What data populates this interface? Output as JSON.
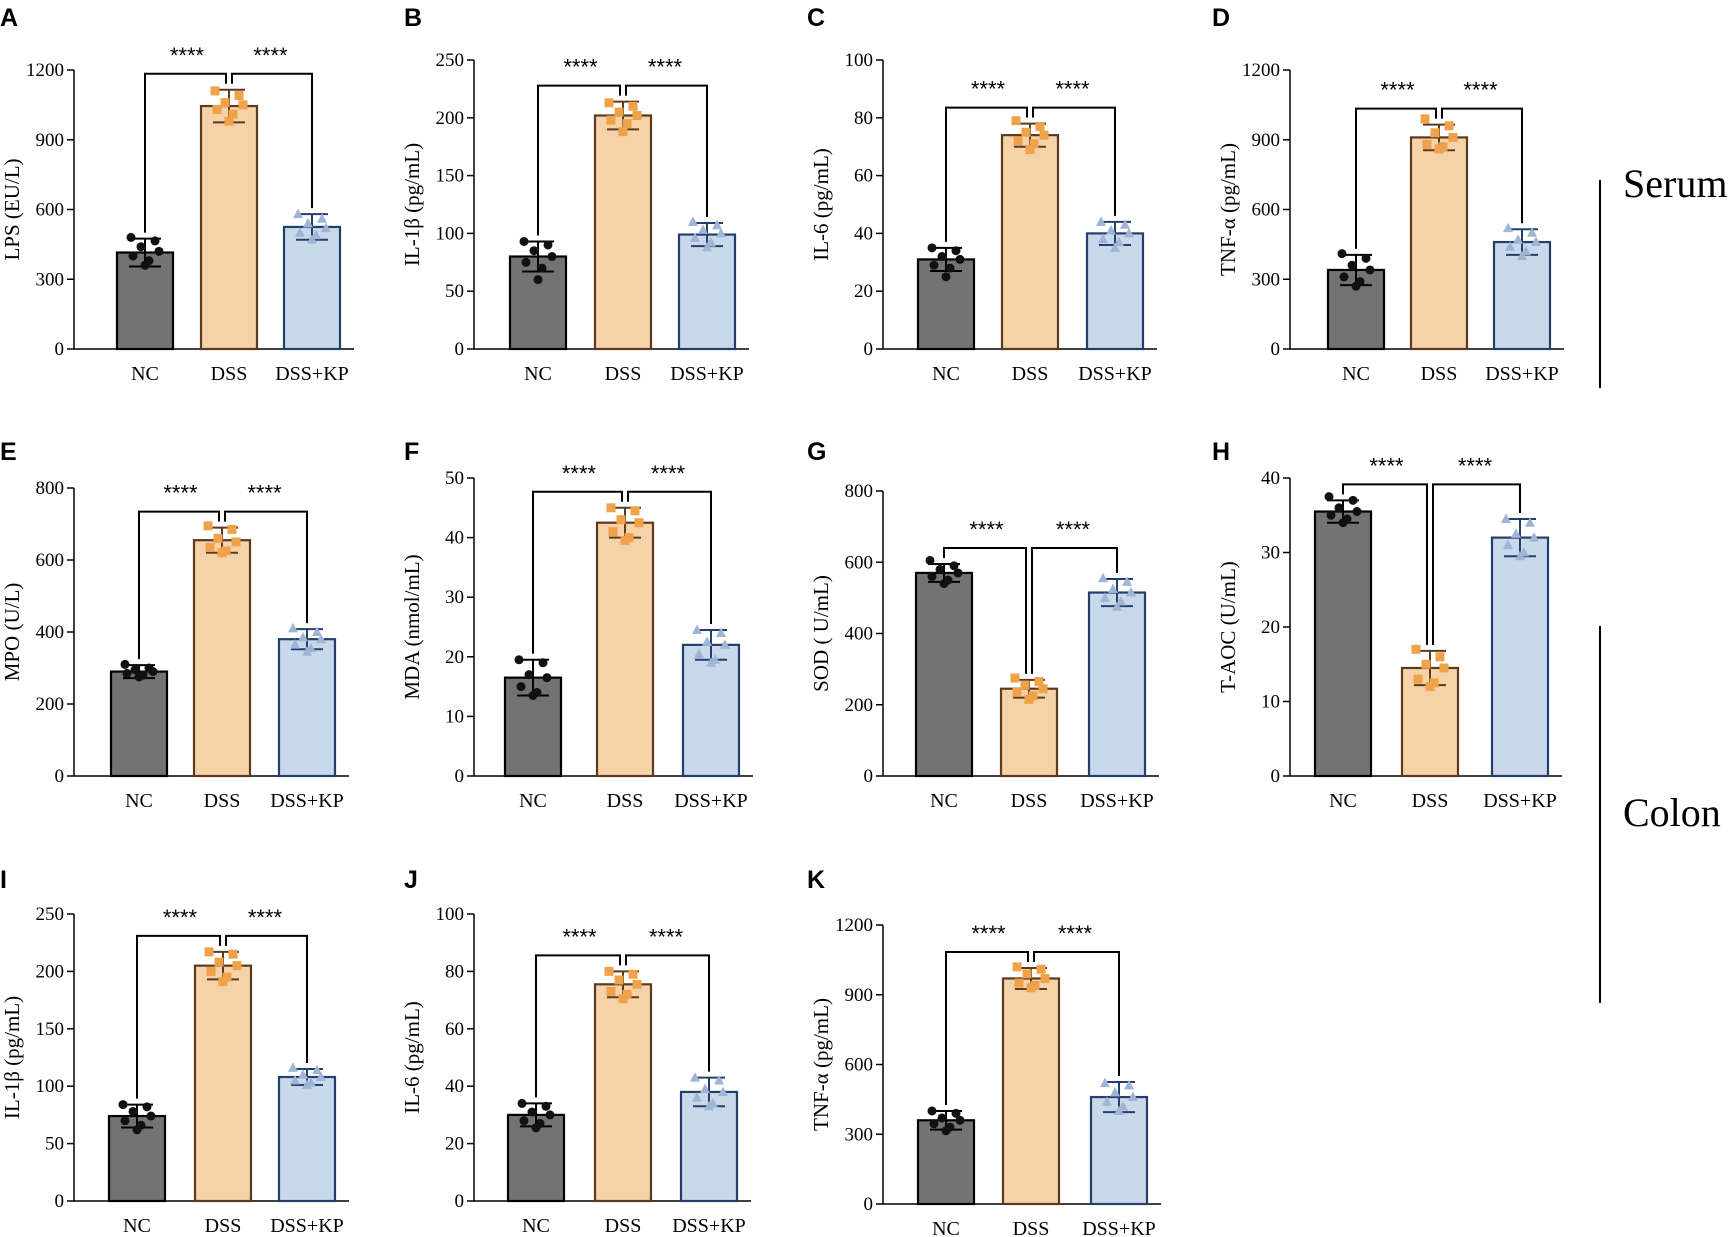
{
  "figure": {
    "group_labels": [
      {
        "id": "serum",
        "text": "Serum"
      },
      {
        "id": "colon",
        "text": "Colon"
      }
    ],
    "colors": {
      "NC": "#737373",
      "DSS": "#f6d2a8",
      "DSS+KP": "#cad8eb",
      "NC_edge": "#000000",
      "DSS_edge": "#5b3a1e",
      "DSS+KP_edge": "#24406a",
      "NC_dots": "#111111",
      "DSS_dots": "#f0a24a",
      "DSS+KP_dots": "#9fb5d6"
    }
  },
  "chart_data": [
    {
      "panel": "A",
      "type": "bar",
      "ylabel": "LPS (EU/L)",
      "categories": [
        "NC",
        "DSS",
        "DSS+KP"
      ],
      "values": [
        415,
        1045,
        525
      ],
      "errors": [
        60,
        70,
        55
      ],
      "points": [
        [
          480,
          465,
          440,
          420,
          400,
          380,
          360
        ],
        [
          1110,
          1090,
          1060,
          1050,
          1030,
          1010,
          980
        ],
        [
          580,
          560,
          540,
          520,
          500,
          490,
          470
        ]
      ],
      "ylim": [
        0,
        1200
      ],
      "yticks": [
        0,
        300,
        600,
        900,
        1200
      ],
      "significance": [
        "****",
        "****"
      ]
    },
    {
      "panel": "B",
      "type": "bar",
      "ylabel": "IL-1β (pg/mL)",
      "categories": [
        "NC",
        "DSS",
        "DSS+KP"
      ],
      "values": [
        80,
        202,
        99
      ],
      "errors": [
        13,
        12,
        10
      ],
      "points": [
        [
          93,
          90,
          85,
          80,
          75,
          70,
          60
        ],
        [
          213,
          210,
          205,
          202,
          198,
          195,
          188
        ],
        [
          110,
          107,
          103,
          100,
          96,
          92,
          88
        ]
      ],
      "ylim": [
        0,
        250
      ],
      "yticks": [
        0,
        50,
        100,
        150,
        200,
        250
      ],
      "significance": [
        "****",
        "****"
      ]
    },
    {
      "panel": "C",
      "type": "bar",
      "ylabel": "IL-6 (pg/mL)",
      "categories": [
        "NC",
        "DSS",
        "DSS+KP"
      ],
      "values": [
        31,
        74,
        40
      ],
      "errors": [
        4,
        4,
        4
      ],
      "points": [
        [
          35,
          34,
          32,
          31,
          29,
          28,
          25
        ],
        [
          79,
          77,
          75,
          74,
          72,
          71,
          69
        ],
        [
          44,
          43,
          41,
          40,
          38,
          37,
          35
        ]
      ],
      "ylim": [
        0,
        100
      ],
      "yticks": [
        0,
        20,
        40,
        60,
        80,
        100
      ],
      "significance": [
        "****",
        "****"
      ]
    },
    {
      "panel": "D",
      "type": "bar",
      "ylabel": "TNF-α (pg/mL)",
      "categories": [
        "NC",
        "DSS",
        "DSS+KP"
      ],
      "values": [
        340,
        910,
        460
      ],
      "errors": [
        65,
        55,
        55
      ],
      "points": [
        [
          410,
          390,
          360,
          340,
          310,
          290,
          270
        ],
        [
          990,
          960,
          930,
          910,
          880,
          870,
          860
        ],
        [
          520,
          500,
          470,
          460,
          440,
          420,
          400
        ]
      ],
      "ylim": [
        0,
        1200
      ],
      "yticks": [
        0,
        300,
        600,
        900,
        1200
      ],
      "significance": [
        "****",
        "****"
      ]
    },
    {
      "panel": "E",
      "type": "bar",
      "ylabel": "MPO (U/L)",
      "categories": [
        "NC",
        "DSS",
        "DSS+KP"
      ],
      "values": [
        290,
        655,
        380
      ],
      "errors": [
        18,
        35,
        28
      ],
      "points": [
        [
          310,
          300,
          295,
          290,
          285,
          280,
          275
        ],
        [
          695,
          685,
          660,
          650,
          635,
          625,
          620
        ],
        [
          410,
          400,
          385,
          380,
          365,
          355,
          345
        ]
      ],
      "ylim": [
        0,
        800
      ],
      "yticks": [
        0,
        200,
        400,
        600,
        800
      ],
      "significance": [
        "****",
        "****"
      ]
    },
    {
      "panel": "F",
      "type": "bar",
      "ylabel": "MDA (nmol/mL)",
      "categories": [
        "NC",
        "DSS",
        "DSS+KP"
      ],
      "values": [
        16.5,
        42.5,
        22
      ],
      "errors": [
        3,
        2.5,
        2.5
      ],
      "points": [
        [
          19.5,
          19,
          17,
          16.5,
          15,
          14,
          13.5
        ],
        [
          45,
          44.5,
          43,
          42.5,
          41,
          40,
          39.5
        ],
        [
          24.5,
          24,
          22.5,
          22,
          20.5,
          19.5,
          19
        ]
      ],
      "ylim": [
        0,
        50
      ],
      "yticks": [
        0,
        10,
        20,
        30,
        40,
        50
      ],
      "significance": [
        "****",
        "****"
      ]
    },
    {
      "panel": "G",
      "type": "bar",
      "ylabel": "SOD ( U/mL)",
      "categories": [
        "NC",
        "DSS",
        "DSS+KP"
      ],
      "values": [
        570,
        245,
        515
      ],
      "errors": [
        25,
        25,
        38
      ],
      "points": [
        [
          605,
          590,
          580,
          570,
          560,
          550,
          540
        ],
        [
          275,
          265,
          255,
          245,
          235,
          225,
          215
        ],
        [
          555,
          545,
          525,
          515,
          500,
          490,
          475
        ]
      ],
      "ylim": [
        0,
        800
      ],
      "yticks": [
        0,
        200,
        400,
        600,
        800
      ],
      "significance": [
        "****",
        "****"
      ]
    },
    {
      "panel": "H",
      "type": "bar",
      "ylabel": "T-AOC (U/mL)",
      "categories": [
        "NC",
        "DSS",
        "DSS+KP"
      ],
      "values": [
        35.5,
        14.5,
        32
      ],
      "errors": [
        1.5,
        2.3,
        2.5
      ],
      "points": [
        [
          37.5,
          37,
          36,
          35.5,
          35,
          34.5,
          34
        ],
        [
          17,
          16,
          15,
          14.5,
          13,
          12.5,
          12
        ],
        [
          34.5,
          34,
          32.5,
          32,
          31,
          30,
          29.5
        ]
      ],
      "ylim": [
        0,
        40
      ],
      "yticks": [
        0,
        10,
        20,
        30,
        40
      ],
      "significance": [
        "****",
        "****"
      ]
    },
    {
      "panel": "I",
      "type": "bar",
      "ylabel": "IL-1β (pg/mL)",
      "categories": [
        "NC",
        "DSS",
        "DSS+KP"
      ],
      "values": [
        74,
        205,
        108
      ],
      "errors": [
        10,
        12,
        7
      ],
      "points": [
        [
          84,
          82,
          78,
          74,
          70,
          66,
          62
        ],
        [
          217,
          215,
          208,
          205,
          200,
          195,
          191
        ],
        [
          116,
          114,
          110,
          108,
          105,
          103,
          101
        ]
      ],
      "ylim": [
        0,
        250
      ],
      "yticks": [
        0,
        50,
        100,
        150,
        200,
        250
      ],
      "significance": [
        "****",
        "****"
      ]
    },
    {
      "panel": "J",
      "type": "bar",
      "ylabel": "IL-6 (pg/mL)",
      "categories": [
        "NC",
        "DSS",
        "DSS+KP"
      ],
      "values": [
        30,
        75.5,
        38
      ],
      "errors": [
        4,
        4.5,
        5
      ],
      "points": [
        [
          34,
          33,
          31,
          30,
          28,
          27,
          25.5
        ],
        [
          80,
          79,
          77,
          75.5,
          73,
          72,
          70.5
        ],
        [
          43,
          42,
          39,
          38,
          36,
          34,
          33
        ]
      ],
      "ylim": [
        0,
        100
      ],
      "yticks": [
        0,
        20,
        40,
        60,
        80,
        100
      ],
      "significance": [
        "****",
        "****"
      ]
    },
    {
      "panel": "K",
      "type": "bar",
      "ylabel": "TNF-α (pg/mL)",
      "categories": [
        "NC",
        "DSS",
        "DSS+KP"
      ],
      "values": [
        360,
        970,
        460
      ],
      "errors": [
        40,
        45,
        65
      ],
      "points": [
        [
          400,
          390,
          370,
          360,
          345,
          330,
          315
        ],
        [
          1020,
          1010,
          990,
          970,
          950,
          940,
          930
        ],
        [
          520,
          510,
          480,
          460,
          440,
          420,
          400
        ]
      ],
      "ylim": [
        0,
        1200
      ],
      "yticks": [
        0,
        300,
        600,
        900,
        1200
      ],
      "significance": [
        "****",
        "****"
      ]
    }
  ]
}
